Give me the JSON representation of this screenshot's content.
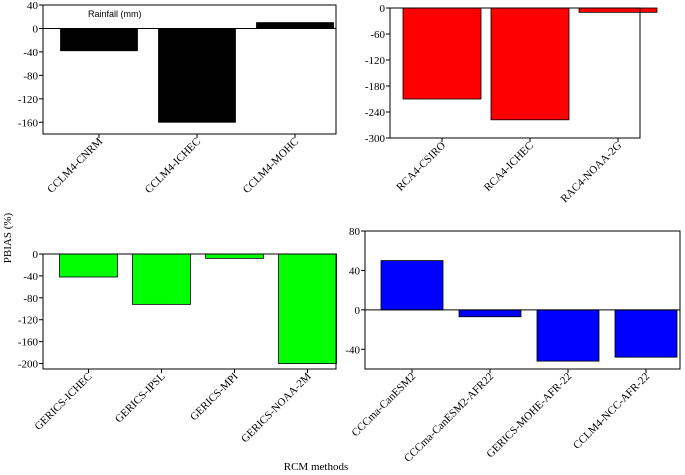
{
  "figure": {
    "ylabel": "PBIAS (%)",
    "xlabel": "RCM methods"
  },
  "chart_data": [
    {
      "type": "bar",
      "categories": [
        "CCLM4-CNRM",
        "CCLM4-ICHEC",
        "CCLM4-MOHC"
      ],
      "values": [
        -38,
        -160,
        10
      ],
      "annotation": "Rainfall (mm)",
      "ylim": [
        -180,
        40
      ],
      "yticks": [
        40,
        0,
        -40,
        -80,
        -120,
        -160
      ],
      "color": "#000000"
    },
    {
      "type": "bar",
      "categories": [
        "RCA4-CSIRO",
        "RCA4-ICHEC",
        "RAC4-NOAA-2G"
      ],
      "values": [
        -210,
        -258,
        -10
      ],
      "ylim": [
        -300,
        0
      ],
      "yticks": [
        0,
        -60,
        -120,
        -180,
        -240,
        -300
      ],
      "color": "#ff0000"
    },
    {
      "type": "bar",
      "categories": [
        "GERICS-ICHEC",
        "GERICS-IPSL",
        "GERICS-MPI",
        "GERICS-NOAA-2M"
      ],
      "values": [
        -42,
        -92,
        -8,
        -200
      ],
      "ylim": [
        -210,
        0
      ],
      "yticks": [
        0,
        -40,
        -80,
        -120,
        -160,
        -200
      ],
      "color": "#00ff00"
    },
    {
      "type": "bar",
      "categories": [
        "CCCma-CanESM2",
        "CCCma-CanESM2-AFR22",
        "GERICS-MOHE-AFR-22",
        "CCLM4-NCC-AFR-22"
      ],
      "values": [
        50,
        -7,
        -52,
        -48
      ],
      "ylim": [
        -60,
        80
      ],
      "yticks": [
        80,
        40,
        0,
        -40
      ],
      "color": "#0000ff"
    }
  ]
}
